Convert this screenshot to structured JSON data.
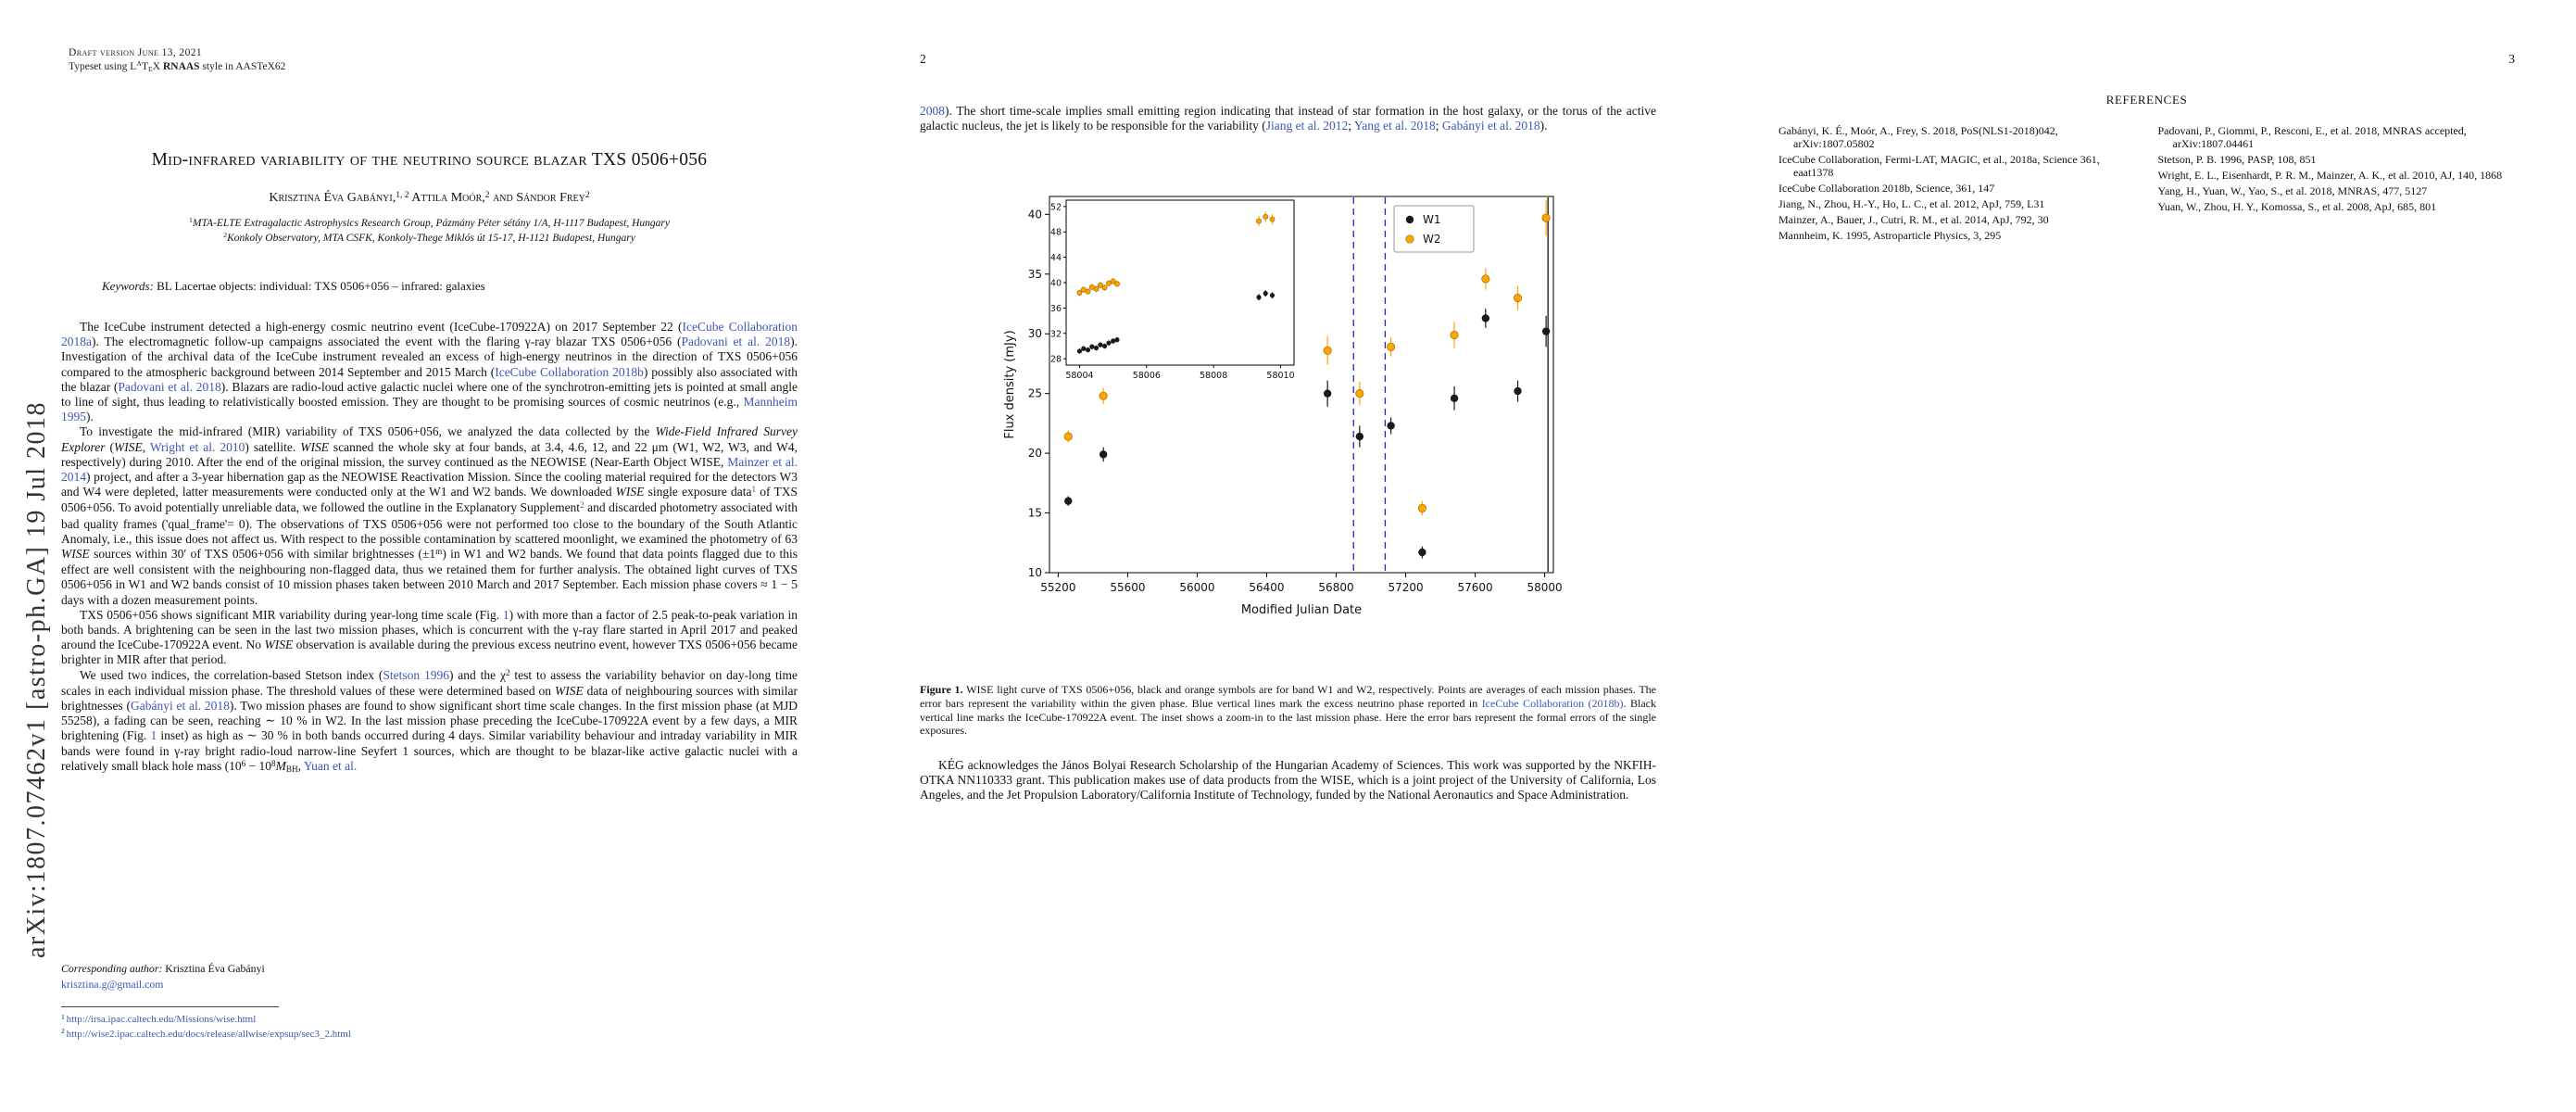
{
  "page1": {
    "draft_line": "Draft version June 13, 2021",
    "typeset_line": [
      [
        "p",
        "Typeset using L"
      ],
      [
        "sup",
        "A"
      ],
      [
        "p",
        "T"
      ],
      [
        "sub",
        "E"
      ],
      [
        "p",
        "X "
      ],
      [
        "b",
        "RNAAS"
      ],
      [
        "p",
        " style in AASTeX62"
      ]
    ],
    "arxiv_sidebar": "arXiv:1807.07462v1  [astro-ph.GA]  19 Jul 2018",
    "title": "Mid-infrared variability of the neutrino source blazar TXS 0506+056",
    "authors": [
      [
        "p",
        "Krisztina Éva Gabányi,"
      ],
      [
        "sup",
        "1, 2"
      ],
      [
        "p",
        " Attila Moór,"
      ],
      [
        "sup",
        "2"
      ],
      [
        "p",
        " and Sándor Frey"
      ],
      [
        "sup",
        "2"
      ]
    ],
    "affil1": [
      [
        "sup",
        "1"
      ],
      [
        "i",
        "MTA-ELTE Extragalactic Astrophysics Research Group, Pázmány Péter sétány 1/A, H-1117 Budapest, Hungary"
      ]
    ],
    "affil2": [
      [
        "sup",
        "2"
      ],
      [
        "i",
        "Konkoly Observatory, MTA CSFK, Konkoly-Thege Miklós út 15-17, H-1121 Budapest, Hungary"
      ]
    ],
    "keywords": [
      [
        "i",
        "Keywords:"
      ],
      [
        "p",
        " BL Lacertae objects: individual: TXS 0506+056 – infrared: galaxies"
      ]
    ],
    "paragraphs": [
      [
        [
          "p",
          "The IceCube instrument detected a high-energy cosmic neutrino event (IceCube-170922A) on 2017 September 22 ("
        ],
        [
          "l",
          "IceCube Collaboration 2018a"
        ],
        [
          "p",
          "). The electromagnetic follow-up campaigns associated the event with the flaring γ-ray blazar TXS 0506+056 ("
        ],
        [
          "l",
          "Padovani et al. 2018"
        ],
        [
          "p",
          "). Investigation of the archival data of the IceCube instrument revealed an excess of high-energy neutrinos in the direction of TXS 0506+056 compared to the atmospheric background between 2014 September and 2015 March ("
        ],
        [
          "l",
          "IceCube Collaboration 2018b"
        ],
        [
          "p",
          ") possibly also associated with the blazar ("
        ],
        [
          "l",
          "Padovani et al. 2018"
        ],
        [
          "p",
          "). Blazars are radio-loud active galactic nuclei where one of the synchrotron-emitting jets is pointed at small angle to line of sight, thus leading to relativistically boosted emission. They are thought to be promising sources of cosmic neutrinos (e.g., "
        ],
        [
          "l",
          "Mannheim 1995"
        ],
        [
          "p",
          ")."
        ]
      ],
      [
        [
          "p",
          "To investigate the mid-infrared (MIR) variability of TXS 0506+056, we analyzed the data collected by the "
        ],
        [
          "i",
          "Wide-Field Infrared Survey Explorer"
        ],
        [
          "p",
          " ("
        ],
        [
          "i",
          "WISE"
        ],
        [
          "p",
          ", "
        ],
        [
          "l",
          "Wright et al. 2010"
        ],
        [
          "p",
          ") satellite. "
        ],
        [
          "i",
          "WISE"
        ],
        [
          "p",
          " scanned the whole sky at four bands, at 3.4, 4.6, 12, and 22 μm (W1, W2, W3, and W4, respectively) during 2010. After the end of the original mission, the survey continued as the NEOWISE (Near-Earth Object WISE, "
        ],
        [
          "l",
          "Mainzer et al. 2014"
        ],
        [
          "p",
          ") project, and after a 3-year hibernation gap as the NEOWISE Reactivation Mission. Since the cooling material required for the detectors W3 and W4 were depleted, latter measurements were conducted only at the W1 and W2 bands. We downloaded "
        ],
        [
          "i",
          "WISE"
        ],
        [
          "p",
          " single exposure data"
        ],
        [
          "supl",
          "1"
        ],
        [
          "p",
          " of TXS 0506+056. To avoid potentially unreliable data, we followed the outline in the Explanatory Supplement"
        ],
        [
          "supl",
          "2"
        ],
        [
          "p",
          " and discarded photometry associated with bad quality frames ('qual_frame'= 0). The observations of TXS 0506+056 were not performed too close to the boundary of the South Atlantic Anomaly, i.e., this issue does not affect us. With respect to the possible contamination by scattered moonlight, we examined the photometry of 63 "
        ],
        [
          "i",
          "WISE"
        ],
        [
          "p",
          " sources within 30′ of TXS 0506+056 with similar brightnesses (±1"
        ],
        [
          "sup",
          "m"
        ],
        [
          "p",
          ") in W1 and W2 bands. We found that data points flagged due to this effect are well consistent with the neighbouring non-flagged data, thus we retained them for further analysis. The obtained light curves of TXS 0506+056 in W1 and W2 bands consist of 10 mission phases taken between 2010 March and 2017 September. Each mission phase covers ≈ 1 − 5 days with a dozen measurement points."
        ]
      ],
      [
        [
          "p",
          "TXS 0506+056 shows significant MIR variability during year-long time scale (Fig. "
        ],
        [
          "l",
          "1"
        ],
        [
          "p",
          ") with more than a factor of 2.5 peak-to-peak variation in both bands. A brightening can be seen in the last two mission phases, which is concurrent with the γ-ray flare started in April 2017 and peaked around the IceCube-170922A event. No "
        ],
        [
          "i",
          "WISE"
        ],
        [
          "p",
          " observation is available during the previous excess neutrino event, however TXS 0506+056 became brighter in MIR after that period."
        ]
      ],
      [
        [
          "p",
          "We used two indices, the correlation-based Stetson index ("
        ],
        [
          "l",
          "Stetson 1996"
        ],
        [
          "p",
          ") and the χ"
        ],
        [
          "sup",
          "2"
        ],
        [
          "p",
          " test to assess the variability behavior on day-long time scales in each individual mission phase. The threshold values of these were determined based on "
        ],
        [
          "i",
          "WISE"
        ],
        [
          "p",
          " data of neighbouring sources with similar brightnesses ("
        ],
        [
          "l",
          "Gabányi et al. 2018"
        ],
        [
          "p",
          "). Two mission phases are found to show significant short time scale changes. In the first mission phase (at MJD 55258), a fading can be seen, reaching ∼ 10 % in W2. In the last mission phase preceding the IceCube-170922A event by a few days, a MIR brightening (Fig. "
        ],
        [
          "l",
          "1"
        ],
        [
          "p",
          " inset) as high as ∼ 30 % in both bands occurred during 4 days. Similar variability behaviour and intraday variability in MIR bands were found in γ-ray bright radio-loud narrow-line Seyfert 1 sources, which are thought to be blazar-like active galactic nuclei with a relatively small black hole mass (10"
        ],
        [
          "sup",
          "6"
        ],
        [
          "p",
          " − 10"
        ],
        [
          "sup",
          "8"
        ],
        [
          "i",
          "M"
        ],
        [
          "sub",
          "BH"
        ],
        [
          "p",
          ", "
        ],
        [
          "l",
          "Yuan et al."
        ]
      ]
    ],
    "footer": {
      "corresponding": [
        [
          "i",
          "Corresponding author: "
        ],
        [
          "p",
          "Krisztina Éva Gabányi"
        ]
      ],
      "email": "krisztina.g@gmail.com",
      "footnote1": [
        [
          "sup",
          "1 "
        ],
        [
          "l",
          "http://irsa.ipac.caltech.edu/Missions/wise.html"
        ]
      ],
      "footnote2": [
        [
          "sup",
          "2 "
        ],
        [
          "l",
          "http://wise2.ipac.caltech.edu/docs/release/allwise/expsup/sec3_2.html"
        ]
      ]
    }
  },
  "page2": {
    "page_number": "2",
    "paragraph": [
      [
        "l",
        "2008"
      ],
      [
        "p",
        "). The short time-scale implies small emitting region indicating that instead of star formation in the host galaxy, or the torus of the active galactic nucleus, the jet is likely to be responsible for the variability ("
      ],
      [
        "l",
        "Jiang et al. 2012"
      ],
      [
        "p",
        "; "
      ],
      [
        "l",
        "Yang et al. 2018"
      ],
      [
        "p",
        "; "
      ],
      [
        "l",
        "Gabányi et al. 2018"
      ],
      [
        "p",
        ")."
      ]
    ],
    "caption": [
      [
        "b",
        "Figure 1."
      ],
      [
        "p",
        "  WISE light curve of TXS 0506+056, black and orange symbols are for band W1 and W2, respectively. Points are averages of each mission phases. The error bars represent the variability within the given phase. Blue vertical lines mark the excess neutrino phase reported in "
      ],
      [
        "l",
        "IceCube Collaboration (2018b)"
      ],
      [
        "p",
        ". Black vertical line marks the IceCube-170922A event. The inset shows a zoom-in to the last mission phase. Here the error bars represent the formal errors of the single exposures."
      ]
    ],
    "acknowledgment": [
      [
        "p",
        "KÉG acknowledges the János Bolyai Research Scholarship of the Hungarian Academy of Sciences. This work was supported by the NKFIH-OTKA NN110333 grant. This publication makes use of data products from the WISE, which is a joint project of the University of California, Los Angeles, and the Jet Propulsion Laboratory/California Institute of Technology, funded by the National Aeronautics and Space Administration."
      ]
    ]
  },
  "page3": {
    "page_number": "3",
    "heading": "REFERENCES",
    "refs_left": [
      "Gabányi, K. É., Moór, A., Frey, S. 2018, PoS(NLS1-2018)042, arXiv:1807.05802",
      "IceCube Collaboration, Fermi-LAT, MAGIC, et al., 2018a, Science 361, eaat1378",
      "IceCube Collaboration 2018b, Science, 361, 147",
      "Jiang, N., Zhou, H.-Y., Ho, L. C., et al. 2012, ApJ, 759, L31",
      "Mainzer, A., Bauer, J., Cutri, R. M., et al. 2014, ApJ, 792, 30",
      "Mannheim, K. 1995, Astroparticle Physics, 3, 295"
    ],
    "refs_right": [
      "Padovani, P., Giommi, P., Resconi, E., et al. 2018, MNRAS accepted, arXiv:1807.04461",
      "Stetson, P. B. 1996, PASP, 108, 851",
      "Wright, E. L., Eisenhardt, P. R. M., Mainzer, A. K., et al. 2010, AJ, 140, 1868",
      "Yang, H., Yuan, W., Yao, S., et al. 2018, MNRAS, 477, 5127",
      "Yuan, W., Zhou, H. Y., Komossa, S., et al. 2008, ApJ, 685, 801"
    ]
  },
  "chart_data": {
    "type": "scatter",
    "title": "",
    "xlabel": "Modified Julian Date",
    "ylabel": "Flux density (mJy)",
    "xlim": [
      55150,
      58050
    ],
    "ylim": [
      10,
      41.5
    ],
    "xticks": [
      55200,
      55600,
      56000,
      56400,
      56800,
      57200,
      57600,
      58000
    ],
    "yticks": [
      10,
      15,
      20,
      25,
      30,
      35,
      40
    ],
    "grid": false,
    "legend": [
      "W1",
      "W2"
    ],
    "legend_position": "upper right",
    "colors": {
      "W1": "#1a1a1a",
      "W2": "#FFA500"
    },
    "vlines": [
      {
        "x": 56900,
        "color": "#2525cc",
        "style": "dashed",
        "label": "excess-neutrino-phase-start"
      },
      {
        "x": 57082,
        "color": "#2525cc",
        "style": "dashed",
        "label": "excess-neutrino-phase-end"
      },
      {
        "x": 58019,
        "color": "#111111",
        "style": "solid",
        "label": "IceCube-170922A-event"
      }
    ],
    "series": [
      {
        "name": "W1",
        "points": [
          [
            55258,
            16.0,
            0.4
          ],
          [
            55460,
            19.9,
            0.6
          ],
          [
            56750,
            25.0,
            1.1
          ],
          [
            56935,
            21.4,
            0.9
          ],
          [
            57115,
            22.3,
            0.7
          ],
          [
            57295,
            11.7,
            0.5
          ],
          [
            57480,
            24.6,
            1.0
          ],
          [
            57660,
            31.3,
            0.8
          ],
          [
            57845,
            25.2,
            0.9
          ],
          [
            58008,
            30.2,
            1.3
          ]
        ]
      },
      {
        "name": "W2",
        "points": [
          [
            55258,
            21.4,
            0.5
          ],
          [
            55460,
            24.8,
            0.7
          ],
          [
            56750,
            28.6,
            1.2
          ],
          [
            56935,
            25.0,
            1.0
          ],
          [
            57115,
            28.9,
            0.8
          ],
          [
            57295,
            15.4,
            0.6
          ],
          [
            57480,
            29.9,
            1.1
          ],
          [
            57660,
            34.6,
            0.9
          ],
          [
            57845,
            33.0,
            1.0
          ],
          [
            58008,
            39.7,
            1.5
          ]
        ]
      }
    ],
    "inset": {
      "xlim": [
        58003.6,
        58010.4
      ],
      "ylim": [
        27,
        53
      ],
      "xticks": [
        58004,
        58006,
        58008,
        58010
      ],
      "yticks": [
        28,
        32,
        36,
        40,
        44,
        48,
        52
      ],
      "series": [
        {
          "name": "W1",
          "points": [
            [
              58004.0,
              29.2,
              0.4
            ],
            [
              58004.12,
              29.6,
              0.4
            ],
            [
              58004.25,
              29.4,
              0.4
            ],
            [
              58004.37,
              29.9,
              0.4
            ],
            [
              58004.5,
              29.7,
              0.4
            ],
            [
              58004.62,
              30.2,
              0.4
            ],
            [
              58004.75,
              30.0,
              0.4
            ],
            [
              58004.87,
              30.5,
              0.4
            ],
            [
              58005.0,
              30.8,
              0.4
            ],
            [
              58005.12,
              31.0,
              0.4
            ],
            [
              58009.35,
              37.7,
              0.5
            ],
            [
              58009.55,
              38.3,
              0.5
            ],
            [
              58009.75,
              38.0,
              0.5
            ]
          ]
        },
        {
          "name": "W2",
          "points": [
            [
              58004.0,
              38.4,
              0.5
            ],
            [
              58004.12,
              38.9,
              0.5
            ],
            [
              58004.25,
              38.6,
              0.5
            ],
            [
              58004.37,
              39.3,
              0.5
            ],
            [
              58004.5,
              39.0,
              0.5
            ],
            [
              58004.62,
              39.6,
              0.5
            ],
            [
              58004.75,
              39.2,
              0.5
            ],
            [
              58004.87,
              39.9,
              0.5
            ],
            [
              58005.0,
              40.2,
              0.5
            ],
            [
              58005.12,
              39.8,
              0.5
            ],
            [
              58009.35,
              49.7,
              0.8
            ],
            [
              58009.55,
              50.4,
              0.8
            ],
            [
              58009.75,
              50.0,
              0.8
            ]
          ]
        }
      ]
    }
  }
}
